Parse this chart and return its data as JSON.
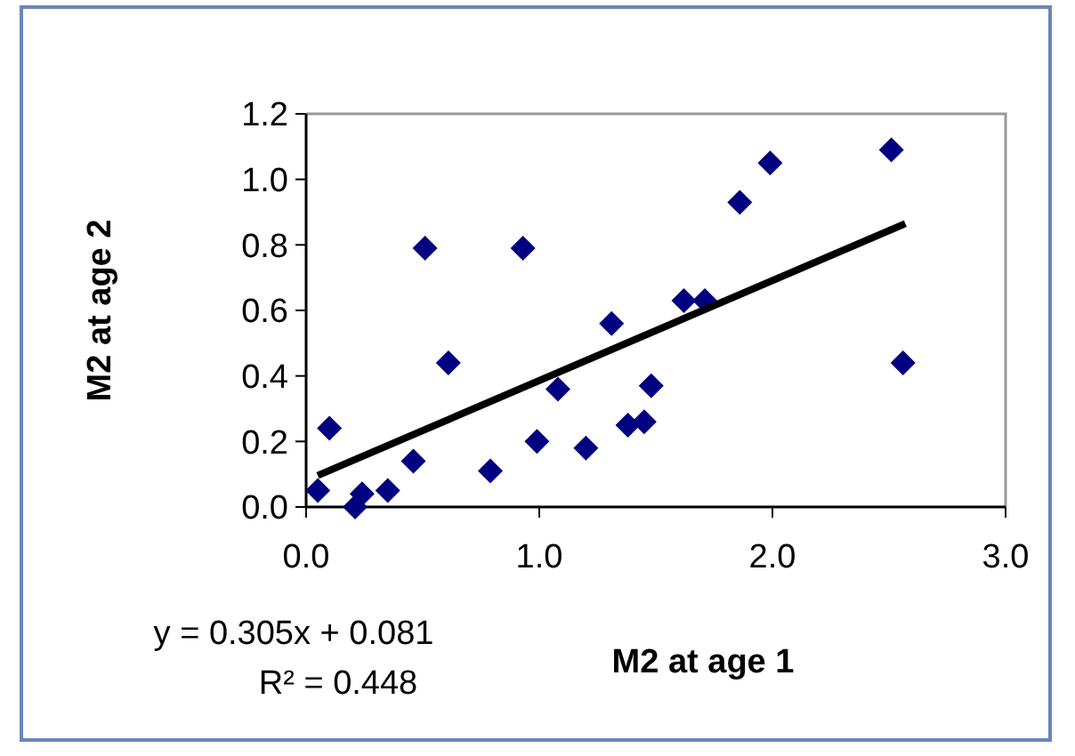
{
  "chart_data": {
    "type": "scatter",
    "xlabel": "M2 at age 1",
    "ylabel": "M2 at age 2",
    "xlim": [
      0,
      3
    ],
    "ylim": [
      0,
      1.2
    ],
    "xticks": [
      {
        "value": 0,
        "label": "0.0"
      },
      {
        "value": 1,
        "label": "1.0"
      },
      {
        "value": 2,
        "label": "2.0"
      },
      {
        "value": 3,
        "label": "3.0"
      }
    ],
    "yticks": [
      {
        "value": 0,
        "label": "0.0"
      },
      {
        "value": 0.2,
        "label": "0.2"
      },
      {
        "value": 0.4,
        "label": "0.4"
      },
      {
        "value": 0.6,
        "label": "0.6"
      },
      {
        "value": 0.8,
        "label": "0.8"
      },
      {
        "value": 1,
        "label": "1.0"
      },
      {
        "value": 1.2,
        "label": "1.2"
      }
    ],
    "grid": false,
    "marker": "diamond",
    "series": [
      {
        "color": "#000080",
        "x": [
          0.05,
          0.1,
          0.21,
          0.24,
          0.35,
          0.46,
          0.51,
          0.61,
          0.79,
          0.93,
          0.99,
          1.08,
          1.2,
          1.31,
          1.38,
          1.45,
          1.48,
          1.62,
          1.71,
          1.86,
          1.99,
          2.51,
          2.56
        ],
        "values": [
          0.05,
          0.24,
          0,
          0.04,
          0.05,
          0.14,
          0.79,
          0.44,
          0.11,
          0.79,
          0.2,
          0.36,
          0.18,
          0.56,
          0.25,
          0.26,
          0.37,
          0.63,
          0.63,
          0.93,
          1.05,
          1.09,
          0.44
        ]
      },
      {
        "type": "line",
        "color": "#000000",
        "x": [
          0.05,
          2.57
        ],
        "values": [
          0.096,
          0.865
        ],
        "marker": "none",
        "line_style": "solid"
      }
    ],
    "annotations": [
      "y = 0.305x + 0.081",
      "R² = 0.448"
    ]
  }
}
